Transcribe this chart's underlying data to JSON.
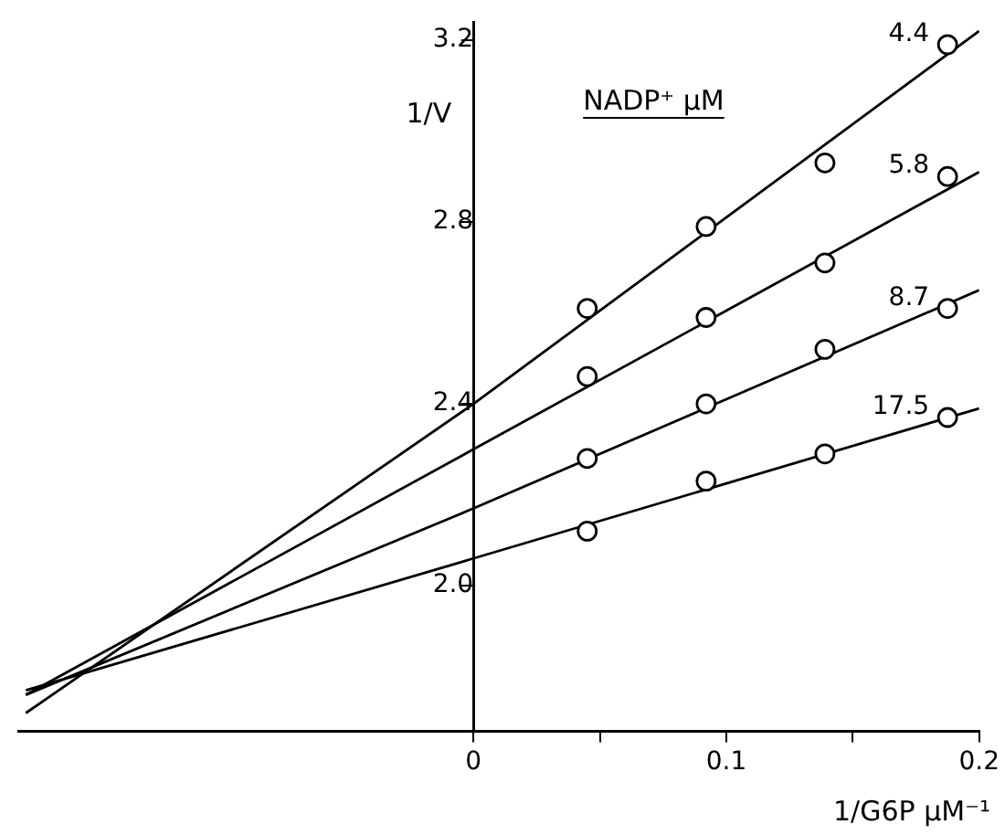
{
  "chart_data": {
    "type": "scatter",
    "xlabel": "1/G6P μM⁻¹",
    "ylabel": "1/V",
    "legend_title": "NADP⁺ μM",
    "xlim": [
      -0.18,
      0.2
    ],
    "ylim": [
      1.68,
      3.24
    ],
    "xticks": [
      0,
      {
        "value": 0.05,
        "label": null
      },
      {
        "value": 0.1,
        "label": "0.1"
      },
      {
        "value": 0.15,
        "label": null
      },
      {
        "value": 0.2,
        "label": "0.2"
      }
    ],
    "yticks": [
      {
        "value": 2,
        "label": "2.0"
      },
      {
        "value": 2.4,
        "label": "2.4"
      },
      {
        "value": 2.8,
        "label": "2.8"
      },
      {
        "value": 3.2,
        "label": "3.2"
      }
    ],
    "grid": false,
    "legend": false,
    "marker": "circle",
    "series": [
      {
        "name": "4.4",
        "color": "#000000",
        "x": [
          0.045,
          0.092,
          0.139,
          0.1875
        ],
        "values": [
          2.61,
          2.79,
          2.93,
          3.19
        ]
      },
      {
        "name": "5.8",
        "color": "#000000",
        "x": [
          0.045,
          0.092,
          0.139,
          0.1875
        ],
        "values": [
          2.46,
          2.59,
          2.71,
          2.9
        ]
      },
      {
        "name": "8.7",
        "color": "#000000",
        "x": [
          0.045,
          0.092,
          0.139,
          0.1875
        ],
        "values": [
          2.28,
          2.4,
          2.52,
          2.61
        ]
      },
      {
        "name": "17.5",
        "color": "#000000",
        "x": [
          0.045,
          0.092,
          0.139,
          0.1875
        ],
        "values": [
          2.12,
          2.23,
          2.29,
          2.37
        ]
      },
      {
        "type": "line",
        "color": "#000000",
        "marker": "none",
        "line_style": "solid",
        "x": [
          -0.177,
          0,
          0.2
        ],
        "values": [
          1.72,
          2.4,
          3.22
        ]
      },
      {
        "type": "line",
        "color": "#000000",
        "marker": "none",
        "line_style": "solid",
        "x": [
          -0.177,
          0,
          0.2
        ],
        "values": [
          1.76,
          2.3,
          2.91
        ]
      },
      {
        "type": "line",
        "color": "#000000",
        "marker": "none",
        "line_style": "solid",
        "x": [
          -0.177,
          0,
          0.2
        ],
        "values": [
          1.76,
          2.17,
          2.65
        ]
      },
      {
        "type": "line",
        "color": "#000000",
        "marker": "none",
        "line_style": "solid",
        "x": [
          -0.177,
          0,
          0.2
        ],
        "values": [
          1.77,
          2.06,
          2.39
        ]
      }
    ]
  }
}
